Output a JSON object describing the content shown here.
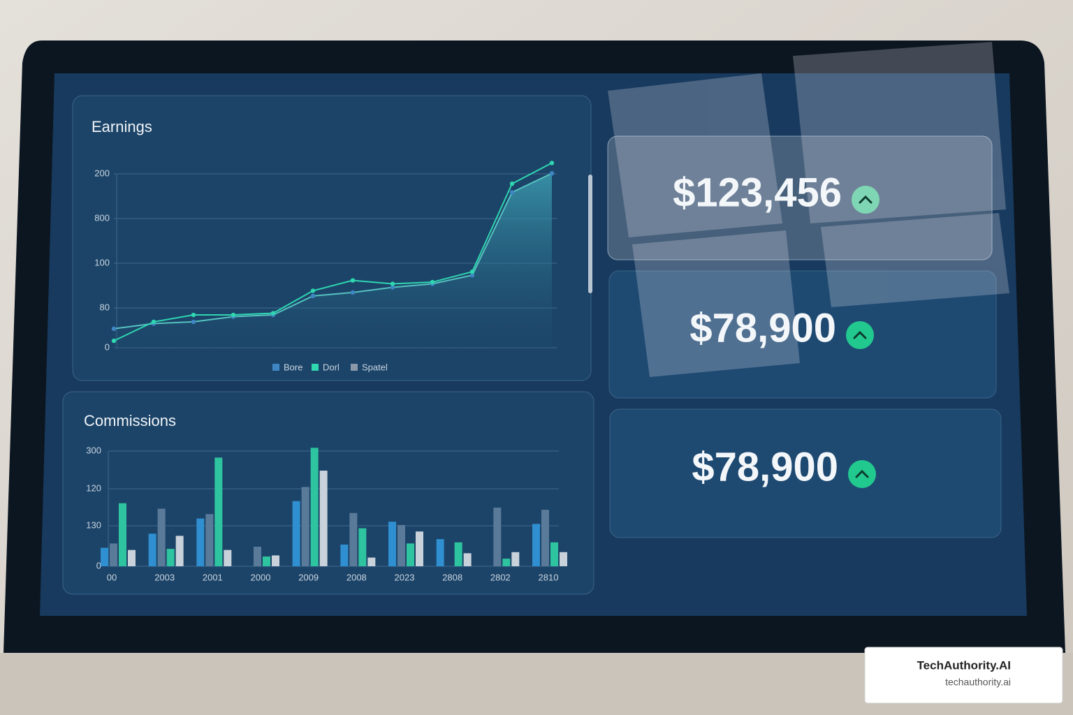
{
  "chart_data": [
    {
      "type": "line",
      "title": "Earnings",
      "y_labels": [
        "200",
        "800",
        "100",
        "80",
        "0"
      ],
      "categories": [
        null,
        null,
        null,
        null,
        null,
        null,
        null,
        null,
        null,
        null,
        null,
        null
      ],
      "ylim": [
        0,
        110
      ],
      "series": [
        {
          "name": "Bore",
          "color": "#3f86c4",
          "values": [
            11,
            14,
            15,
            18,
            19,
            30,
            32,
            35,
            37,
            42,
            90,
            101
          ]
        },
        {
          "name": "Dorl",
          "color": "#2fd6b0",
          "values": [
            4,
            15,
            19,
            19,
            20,
            33,
            39,
            37,
            38,
            44,
            95,
            107
          ]
        }
      ],
      "extra_legend": {
        "name": "Spatel",
        "color": "#8a98a8"
      }
    },
    {
      "type": "bar",
      "title": "Commissions",
      "y_labels": [
        "300",
        "120",
        "130",
        "0"
      ],
      "categories": [
        "00",
        "2003",
        "2001",
        "2000",
        "2009",
        "2008",
        "2023",
        "2808",
        "2802",
        "2810"
      ],
      "ylim": [
        0,
        115
      ],
      "series": [
        {
          "color": "#2f8fd0",
          "values": [
            17,
            30,
            44,
            0,
            60,
            20,
            41,
            25,
            0,
            39
          ]
        },
        {
          "color": "#5a7a9a",
          "values": [
            21,
            53,
            48,
            18,
            73,
            49,
            38,
            0,
            54,
            52
          ]
        },
        {
          "color": "#2ec4a0",
          "values": [
            58,
            16,
            100,
            9,
            109,
            35,
            21,
            22,
            7,
            22
          ]
        },
        {
          "color": "#c9d2da",
          "values": [
            15,
            28,
            15,
            10,
            88,
            8,
            32,
            12,
            13,
            13
          ]
        }
      ]
    }
  ],
  "cards": [
    "$123,456",
    "$78,900",
    "$78,900"
  ],
  "watermark": {
    "title": "TechAuthority.AI",
    "url": "techauthority.ai"
  }
}
